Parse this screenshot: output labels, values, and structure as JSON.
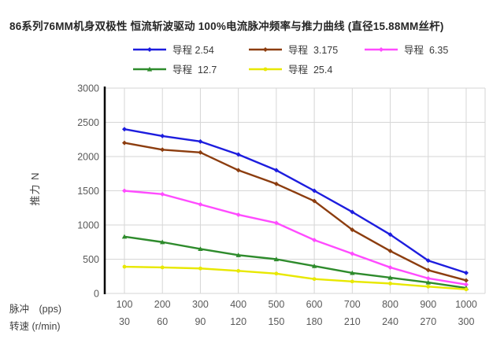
{
  "page": {
    "background": "#FFFFFF"
  },
  "chart_data": {
    "type": "line",
    "title": "86系列76MM机身双极性 恒流斩波驱动 100%电流脉冲频率与推力曲线 (直径15.88MM丝杆)",
    "ylabel": "推力 N",
    "xaxis_label_pulse": "脉冲　(pps)",
    "xaxis_label_speed": "转速 (r/min)",
    "x_pps": [
      100,
      200,
      300,
      400,
      500,
      600,
      700,
      800,
      900,
      1000
    ],
    "x_rpm": [
      30,
      60,
      90,
      120,
      150,
      180,
      210,
      240,
      270,
      300
    ],
    "ylim": [
      0,
      3000
    ],
    "ytick_step": 500,
    "grid": "on",
    "legend_position": "top",
    "colors": {
      "gridline": "#D6D6D6",
      "axis": "#000000",
      "tick_text": "#595959"
    },
    "series": [
      {
        "name": "导程 2.54",
        "color": "#1D1DDE",
        "marker": "diamond",
        "values": [
          2400,
          2300,
          2220,
          2030,
          1800,
          1500,
          1190,
          860,
          480,
          300
        ]
      },
      {
        "name": "导程  3.175",
        "color": "#8C3D0F",
        "marker": "diamond",
        "values": [
          2200,
          2100,
          2060,
          1800,
          1600,
          1350,
          930,
          620,
          340,
          190
        ]
      },
      {
        "name": "导程  6.35",
        "color": "#FF4BFF",
        "marker": "diamond",
        "values": [
          1500,
          1450,
          1300,
          1150,
          1030,
          780,
          580,
          380,
          220,
          130
        ]
      },
      {
        "name": "导程  12.7",
        "color": "#2E8B2C",
        "marker": "triangle",
        "values": [
          830,
          750,
          650,
          560,
          500,
          400,
          300,
          230,
          160,
          80
        ]
      },
      {
        "name": "导程  25.4",
        "color": "#E8E800",
        "marker": "circle",
        "values": [
          390,
          380,
          365,
          330,
          290,
          210,
          175,
          145,
          100,
          60
        ]
      }
    ]
  }
}
